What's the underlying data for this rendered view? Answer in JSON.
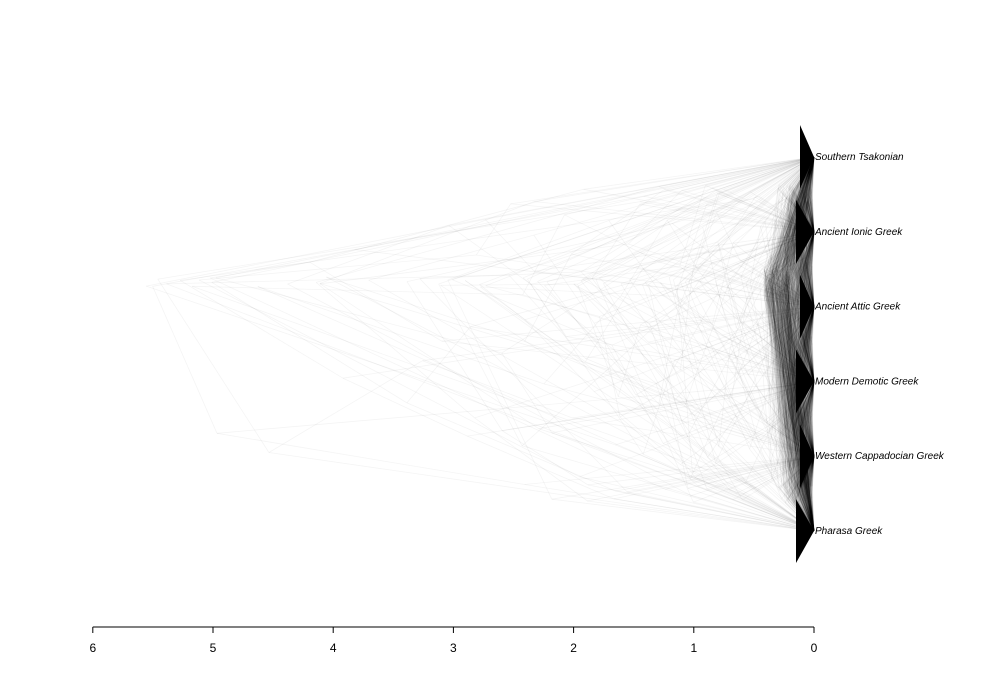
{
  "chart_data": {
    "type": "densitree",
    "taxa": [
      "Southern Tsakonian",
      "Ancient Ionic Greek",
      "Ancient Attic Greek",
      "Modern Demotic Greek",
      "Western Cappadocian Greek",
      "Pharasa Greek"
    ],
    "x_axis": {
      "ticks": [
        6,
        5,
        4,
        3,
        2,
        1,
        0
      ],
      "range": [
        6,
        0
      ],
      "reversed": true
    },
    "root_age_range": [
      0.3,
      5.6
    ],
    "dense_root_age": 0.35,
    "tree_count": 500,
    "line_color": "#000000",
    "background": "#ffffff"
  }
}
